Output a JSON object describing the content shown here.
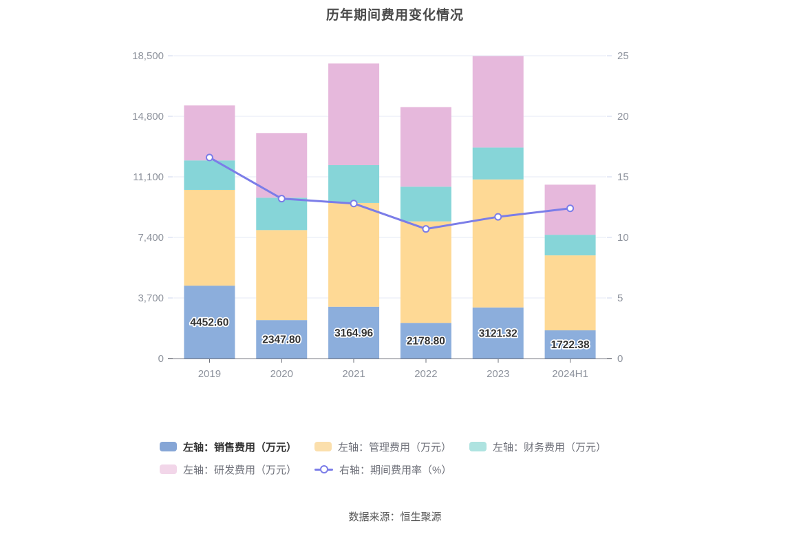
{
  "title": "历年期间费用变化情况",
  "footer": "数据来源：恒生聚源",
  "chart_data": {
    "type": "bar",
    "subtype": "stacked-bar-with-line",
    "categories": [
      "2019",
      "2020",
      "2021",
      "2022",
      "2023",
      "2024H1"
    ],
    "series": [
      {
        "name": "左轴：销售费用（万元）",
        "series_type": "bar",
        "color": "#8caedc",
        "legend_color": "#86a6d6",
        "emphasized": true,
        "values": [
          4452.6,
          2347.8,
          3164.96,
          2178.8,
          3121.32,
          1722.38
        ]
      },
      {
        "name": "左轴：管理费用（万元）",
        "series_type": "bar",
        "color": "#fed995",
        "legend_color": "#fbdfac",
        "emphasized": false,
        "values": [
          5850,
          5500,
          6340,
          6200,
          7820,
          4580
        ]
      },
      {
        "name": "左轴：财务费用（万元）",
        "series_type": "bar",
        "color": "#86d5d8",
        "legend_color": "#aee3e0",
        "emphasized": false,
        "values": [
          1800,
          1980,
          2310,
          2120,
          1950,
          1260
        ]
      },
      {
        "name": "左轴：研发费用（万元）",
        "series_type": "bar",
        "color": "#e6b8dc",
        "legend_color": "#f2d6e9",
        "emphasized": false,
        "values": [
          3360,
          3950,
          6210,
          4860,
          5590,
          3060
        ]
      },
      {
        "name": "右轴：期间费用率（%）",
        "series_type": "line",
        "color": "#7b7de8",
        "emphasized": false,
        "values": [
          16.6,
          13.2,
          12.8,
          10.7,
          11.7,
          12.4
        ]
      }
    ],
    "bar_value_labels": [
      "4452.60",
      "2347.80",
      "3164.96",
      "2178.80",
      "3121.32",
      "1722.38"
    ],
    "bar_value_labels_series": "左轴：销售费用（万元）",
    "left_axis": {
      "min": 0,
      "max": 18500,
      "ticks": [
        "0",
        "3,700",
        "7,400",
        "11,100",
        "14,800",
        "18,500"
      ]
    },
    "right_axis": {
      "min": 0,
      "max": 25,
      "ticks": [
        "0",
        "5",
        "10",
        "15",
        "20",
        "25"
      ]
    },
    "grid": true,
    "legend_position": "bottom",
    "colors": {
      "gridline": "#e4e9f5",
      "axis_line": "#6e7079",
      "tick_light": "#ccd4ec",
      "axis_label": "#8d929c",
      "bar_label_text": "#333333",
      "title_text": "#4a4a4a"
    }
  }
}
